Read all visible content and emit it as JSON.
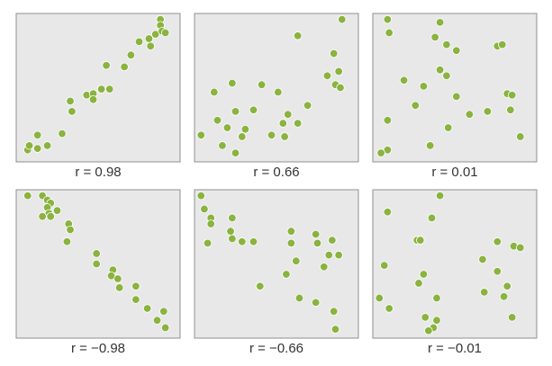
{
  "chart_data": [
    {
      "type": "scatter",
      "caption": "r = 0.98",
      "color": "#8ab33f",
      "xlim": [
        0,
        100
      ],
      "ylim": [
        0,
        100
      ],
      "x": [
        7,
        8,
        13,
        13,
        19,
        28,
        33,
        34,
        43,
        47,
        47,
        52,
        57,
        55,
        66,
        70,
        75,
        81,
        82,
        85,
        88,
        88,
        89,
        91
      ],
      "y": [
        8,
        11,
        18,
        9,
        11,
        19,
        41,
        34,
        45,
        46,
        42,
        49,
        49,
        65,
        64,
        72,
        81,
        83,
        78,
        86,
        96,
        92,
        88,
        87
      ]
    },
    {
      "type": "scatter",
      "caption": "r = 0.66",
      "color": "#8ab33f",
      "xlim": [
        0,
        100
      ],
      "ylim": [
        0,
        100
      ],
      "x": [
        63,
        90,
        85,
        88,
        81,
        86,
        89,
        23,
        12,
        41,
        51,
        69,
        36,
        14,
        25,
        20,
        31,
        57,
        54,
        63,
        47,
        55,
        29,
        4,
        17,
        25
      ],
      "y": [
        85,
        96,
        73,
        61,
        58,
        52,
        50,
        53,
        47,
        52,
        47,
        38,
        35,
        28,
        34,
        23,
        22,
        32,
        26,
        26,
        18,
        17,
        17,
        18,
        11,
        6
      ]
    },
    {
      "type": "scatter",
      "caption": "r = 0.01",
      "color": "#8ab33f",
      "xlim": [
        0,
        100
      ],
      "ylim": [
        0,
        100
      ],
      "x": [
        9,
        41,
        10,
        38,
        45,
        51,
        76,
        79,
        41,
        45,
        19,
        31,
        26,
        51,
        82,
        85,
        84,
        70,
        59,
        46,
        9,
        90,
        35,
        9,
        5
      ],
      "y": [
        96,
        94,
        87,
        84,
        79,
        75,
        78,
        79,
        62,
        58,
        55,
        51,
        38,
        44,
        46,
        45,
        35,
        34,
        32,
        23,
        28,
        17,
        11,
        8,
        6
      ]
    },
    {
      "type": "scatter",
      "caption": "r = −0.98",
      "color": "#8ab33f",
      "xlim": [
        0,
        100
      ],
      "ylim": [
        0,
        100
      ],
      "x": [
        7,
        16,
        19,
        21,
        19,
        20,
        25,
        16,
        21,
        32,
        33,
        31,
        49,
        49,
        59,
        58,
        62,
        63,
        73,
        73,
        80,
        90,
        86,
        91
      ],
      "y": [
        96,
        96,
        93,
        91,
        88,
        84,
        86,
        82,
        82,
        77,
        73,
        65,
        57,
        50,
        46,
        42,
        40,
        34,
        35,
        26,
        20,
        18,
        12,
        7
      ]
    },
    {
      "type": "scatter",
      "caption": "r = −0.66",
      "color": "#8ab33f",
      "xlim": [
        0,
        100
      ],
      "ylim": [
        0,
        100
      ],
      "x": [
        4,
        6,
        10,
        10,
        23,
        22,
        23,
        29,
        36,
        8,
        59,
        59,
        74,
        75,
        84,
        82,
        88,
        62,
        79,
        56,
        40,
        64,
        74,
        85,
        86
      ],
      "y": [
        96,
        87,
        81,
        77,
        81,
        72,
        67,
        65,
        65,
        64,
        72,
        64,
        70,
        64,
        66,
        56,
        56,
        52,
        48,
        43,
        35,
        27,
        24,
        18,
        6
      ]
    },
    {
      "type": "scatter",
      "caption": "r = −0.01",
      "color": "#8ab33f",
      "xlim": [
        0,
        100
      ],
      "ylim": [
        0,
        100
      ],
      "x": [
        41,
        9,
        36,
        27,
        29,
        76,
        86,
        90,
        7,
        67,
        76,
        31,
        28,
        82,
        68,
        80,
        4,
        39,
        10,
        85,
        32,
        39,
        37,
        34
      ],
      "y": [
        96,
        85,
        81,
        66,
        66,
        65,
        62,
        61,
        49,
        53,
        45,
        43,
        37,
        35,
        31,
        28,
        27,
        27,
        20,
        14,
        14,
        12,
        7,
        5
      ]
    }
  ]
}
